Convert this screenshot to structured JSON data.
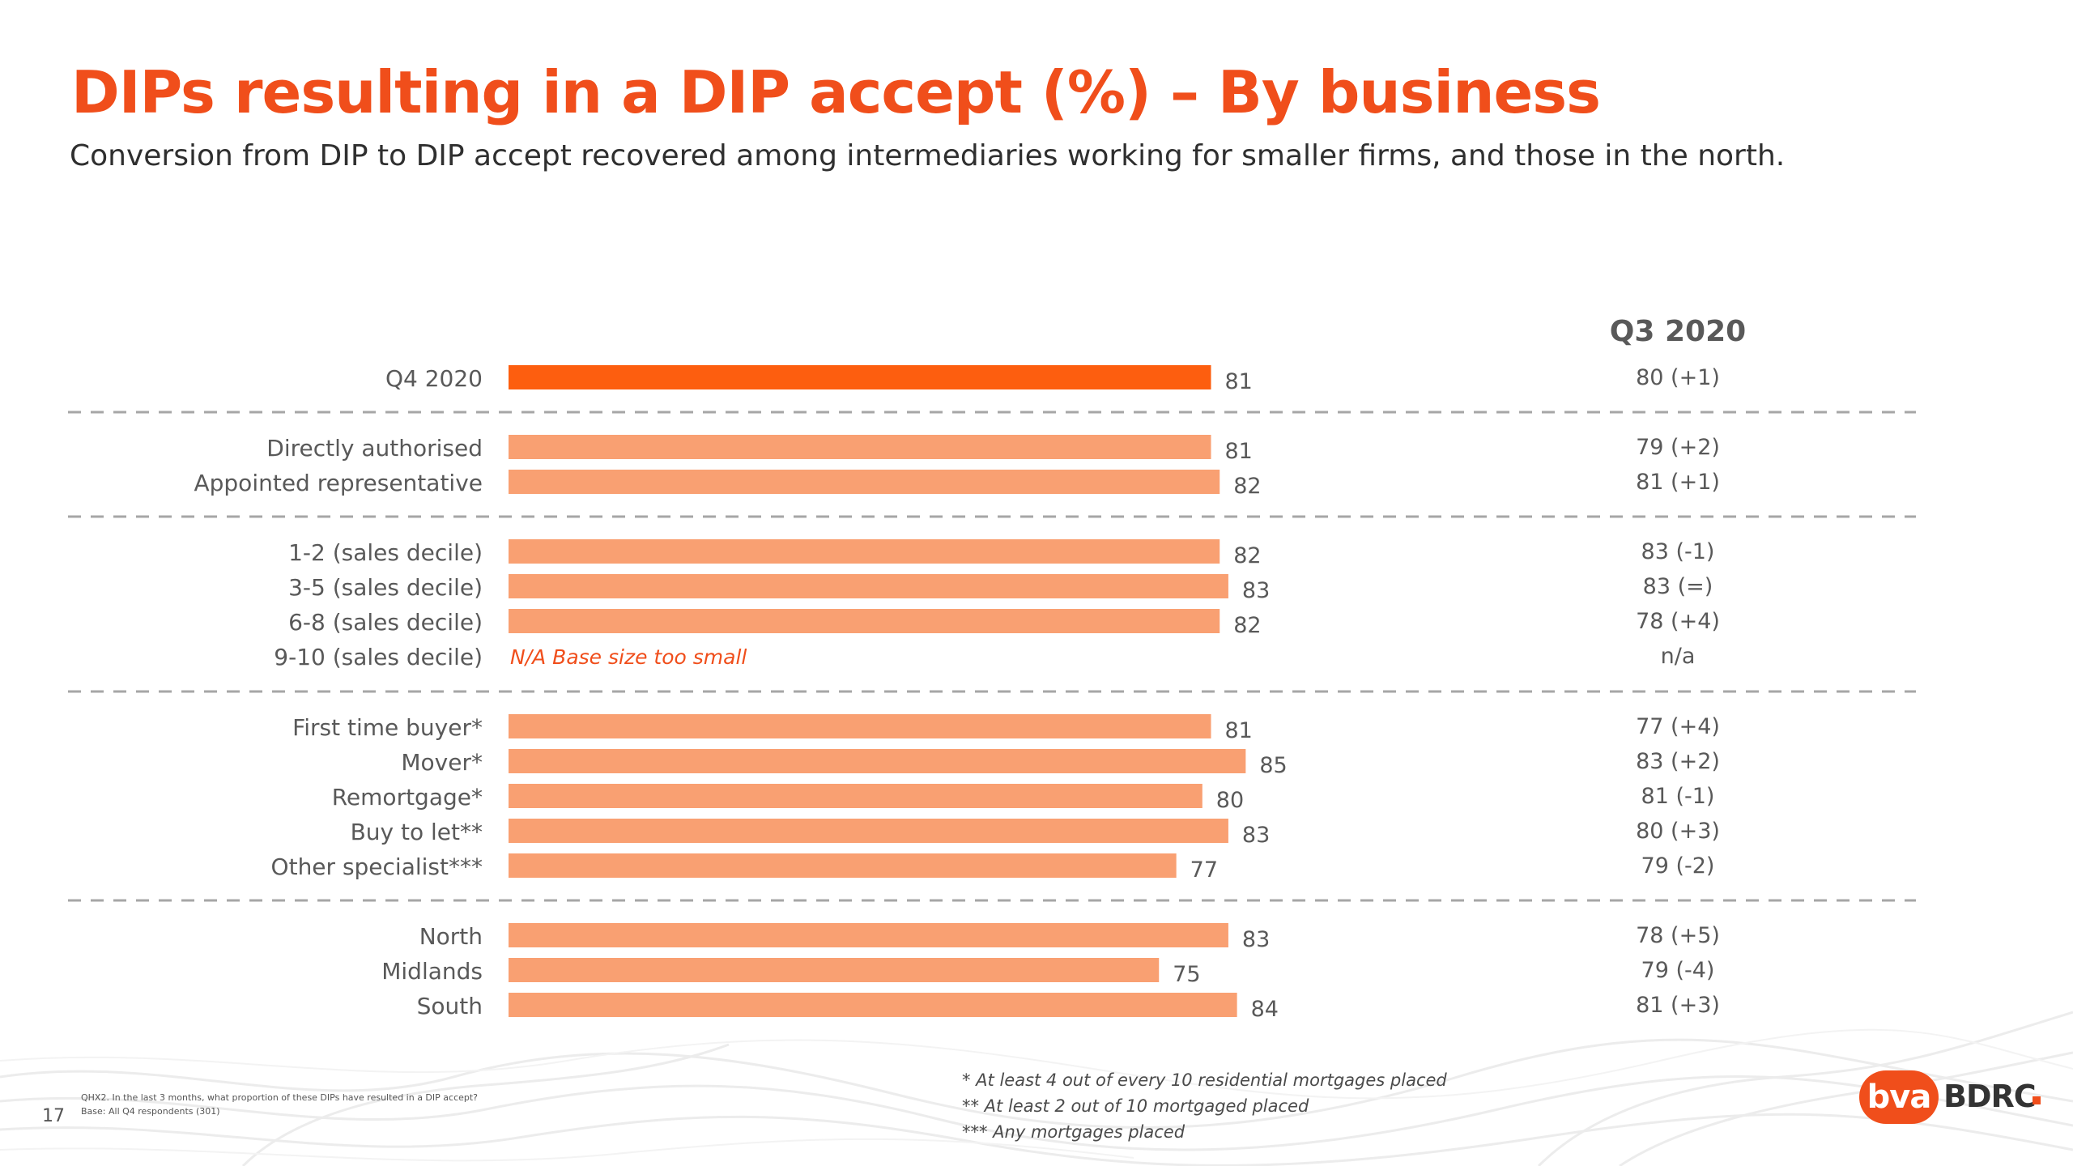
{
  "title": "DIPs resulting in a DIP accept (%) – By business",
  "subtitle": "Conversion from DIP to DIP accept recovered among intermediaries working for smaller firms, and those in the north.",
  "colors": {
    "accent": "#f04e1b",
    "highlight_bar": "#fd5e0f",
    "bar": "#f9a072",
    "divider": "#a6a6a6",
    "text": "#595959"
  },
  "chart_data": {
    "type": "bar",
    "orientation": "horizontal",
    "xlim": [
      0,
      100
    ],
    "comparison_header": "Q3 2020",
    "rows": [
      {
        "label": "Q4 2020",
        "value": 81,
        "value_label": "81",
        "q3_2020": "80 (+1)",
        "highlight": true,
        "group": 0
      },
      {
        "label": "Directly authorised",
        "value": 81,
        "value_label": "81",
        "q3_2020": "79 (+2)",
        "group": 1
      },
      {
        "label": "Appointed representative",
        "value": 82,
        "value_label": "82",
        "q3_2020": "81 (+1)",
        "group": 1
      },
      {
        "label": "1-2 (sales decile)",
        "value": 82,
        "value_label": "82",
        "q3_2020": "83 (-1)",
        "group": 2
      },
      {
        "label": "3-5 (sales decile)",
        "value": 83,
        "value_label": "83",
        "q3_2020": "83 (=)",
        "group": 2
      },
      {
        "label": "6-8 (sales decile)",
        "value": 82,
        "value_label": "82",
        "q3_2020": "78 (+4)",
        "group": 2
      },
      {
        "label": "9-10 (sales decile)",
        "value": null,
        "note": "N/A Base size too small",
        "q3_2020": "n/a",
        "group": 2
      },
      {
        "label": "First time buyer*",
        "value": 81,
        "value_label": "81",
        "q3_2020": "77 (+4)",
        "group": 3
      },
      {
        "label": "Mover*",
        "value": 85,
        "value_label": "85",
        "q3_2020": "83 (+2)",
        "group": 3
      },
      {
        "label": "Remortgage*",
        "value": 80,
        "value_label": "80",
        "q3_2020": "81 (-1)",
        "group": 3
      },
      {
        "label": "Buy to let**",
        "value": 83,
        "value_label": "83",
        "q3_2020": "80 (+3)",
        "group": 3
      },
      {
        "label": "Other specialist***",
        "value": 77,
        "value_label": "77",
        "q3_2020": "79 (-2)",
        "group": 3
      },
      {
        "label": "North",
        "value": 83,
        "value_label": "83",
        "q3_2020": "78 (+5)",
        "group": 4
      },
      {
        "label": "Midlands",
        "value": 75,
        "value_label": "75",
        "q3_2020": "79 (-4)",
        "group": 4
      },
      {
        "label": "South",
        "value": 84,
        "value_label": "84",
        "q3_2020": "81 (+3)",
        "group": 4
      }
    ]
  },
  "footnotes": [
    "* At least 4 out of every 10 residential mortgages placed",
    "** At least 2 out of 10 mortgaged placed",
    "*** Any mortgages placed"
  ],
  "source": {
    "question": "QHX2. In the last 3 months, what proportion of these DIPs have resulted in a DIP accept?",
    "base": "Base: All Q4 respondents (301)"
  },
  "page_number": "17",
  "logo": {
    "left": "BVA",
    "right": "BDRC",
    "left_display": "bva"
  }
}
